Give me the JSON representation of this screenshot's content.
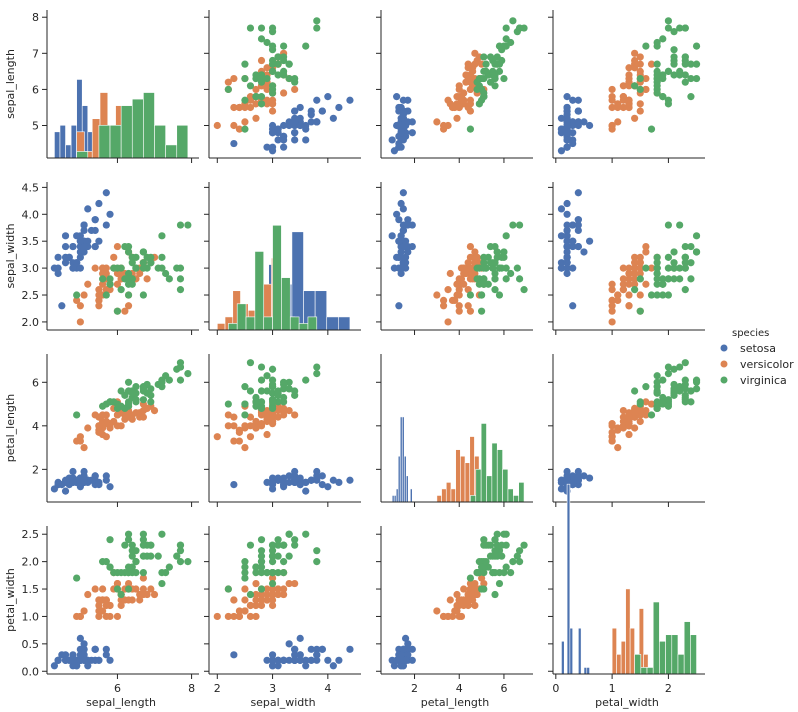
{
  "chart_data": {
    "type": "scatter",
    "variables": [
      "sepal_length",
      "sepal_width",
      "petal_length",
      "petal_width"
    ],
    "ranges": {
      "sepal_length": [
        4.1,
        8.2
      ],
      "sepal_width": [
        1.85,
        4.6
      ],
      "petal_length": [
        0.5,
        7.3
      ],
      "petal_width": [
        -0.05,
        2.65
      ]
    },
    "ticks": {
      "sepal_length": [
        5,
        6,
        7,
        8
      ],
      "sepal_width": [
        2.0,
        2.5,
        3.0,
        3.5,
        4.0,
        4.5
      ],
      "petal_length": [
        2,
        4,
        6
      ],
      "petal_width": [
        0.0,
        0.5,
        1.0,
        1.5,
        2.0,
        2.5
      ]
    },
    "ticks_x": {
      "sepal_length": [
        6,
        8
      ],
      "sepal_width": [
        2,
        3,
        4
      ],
      "petal_length": [
        2,
        4,
        6
      ],
      "petal_width": [
        0,
        1,
        2
      ]
    },
    "ticks_y": {
      "sepal_length": [
        5,
        6,
        7,
        8
      ],
      "sepal_width": [
        2.0,
        2.5,
        3.0,
        3.5,
        4.0,
        4.5
      ],
      "petal_length": [
        2,
        4,
        6
      ],
      "petal_width": [
        0.0,
        0.5,
        1.0,
        1.5,
        2.0,
        2.5
      ]
    },
    "tick_labels_x": {
      "sepal_length": [
        "6",
        "8"
      ],
      "sepal_width": [
        "2",
        "3",
        "4"
      ],
      "petal_length": [
        "2",
        "4",
        "6"
      ],
      "petal_width": [
        "0",
        "1",
        "2"
      ]
    },
    "tick_labels_y": {
      "sepal_length": [
        "5",
        "6",
        "7",
        "8"
      ],
      "sepal_width": [
        "2.0",
        "2.5",
        "3.0",
        "3.5",
        "4.0",
        "4.5"
      ],
      "petal_length": [
        "2",
        "4",
        "6"
      ],
      "petal_width": [
        "0.0",
        "0.5",
        "1.0",
        "1.5",
        "2.0",
        "2.5"
      ]
    },
    "legend": {
      "title": "species",
      "placement": "center-right",
      "entries": [
        {
          "name": "setosa",
          "color": "#4c72b0"
        },
        {
          "name": "versicolor",
          "color": "#dd8452"
        },
        {
          "name": "virginica",
          "color": "#55a868"
        }
      ]
    },
    "histogram_bins": 10,
    "series": [
      {
        "name": "setosa",
        "color": "#4c72b0",
        "rows": [
          [
            5.1,
            3.5,
            1.4,
            0.2
          ],
          [
            4.9,
            3.0,
            1.4,
            0.2
          ],
          [
            4.7,
            3.2,
            1.3,
            0.2
          ],
          [
            4.6,
            3.1,
            1.5,
            0.2
          ],
          [
            5.0,
            3.6,
            1.4,
            0.2
          ],
          [
            5.4,
            3.9,
            1.7,
            0.4
          ],
          [
            4.6,
            3.4,
            1.4,
            0.3
          ],
          [
            5.0,
            3.4,
            1.5,
            0.2
          ],
          [
            4.4,
            2.9,
            1.4,
            0.2
          ],
          [
            4.9,
            3.1,
            1.5,
            0.1
          ],
          [
            5.4,
            3.7,
            1.5,
            0.2
          ],
          [
            4.8,
            3.4,
            1.6,
            0.2
          ],
          [
            4.8,
            3.0,
            1.4,
            0.1
          ],
          [
            4.3,
            3.0,
            1.1,
            0.1
          ],
          [
            5.8,
            4.0,
            1.2,
            0.2
          ],
          [
            5.7,
            4.4,
            1.5,
            0.4
          ],
          [
            5.4,
            3.9,
            1.3,
            0.4
          ],
          [
            5.1,
            3.5,
            1.4,
            0.3
          ],
          [
            5.7,
            3.8,
            1.7,
            0.3
          ],
          [
            5.1,
            3.8,
            1.5,
            0.3
          ],
          [
            5.4,
            3.4,
            1.7,
            0.2
          ],
          [
            5.1,
            3.7,
            1.5,
            0.4
          ],
          [
            4.6,
            3.6,
            1.0,
            0.2
          ],
          [
            5.1,
            3.3,
            1.7,
            0.5
          ],
          [
            4.8,
            3.4,
            1.9,
            0.2
          ],
          [
            5.0,
            3.0,
            1.6,
            0.2
          ],
          [
            5.0,
            3.4,
            1.6,
            0.4
          ],
          [
            5.2,
            3.5,
            1.5,
            0.2
          ],
          [
            5.2,
            3.4,
            1.4,
            0.2
          ],
          [
            4.7,
            3.2,
            1.6,
            0.2
          ],
          [
            4.8,
            3.1,
            1.6,
            0.2
          ],
          [
            5.4,
            3.4,
            1.5,
            0.4
          ],
          [
            5.2,
            4.1,
            1.5,
            0.1
          ],
          [
            5.5,
            4.2,
            1.4,
            0.2
          ],
          [
            4.9,
            3.1,
            1.5,
            0.2
          ],
          [
            5.0,
            3.2,
            1.2,
            0.2
          ],
          [
            5.5,
            3.5,
            1.3,
            0.2
          ],
          [
            4.9,
            3.6,
            1.4,
            0.1
          ],
          [
            4.4,
            3.0,
            1.3,
            0.2
          ],
          [
            5.1,
            3.4,
            1.5,
            0.2
          ],
          [
            5.0,
            3.5,
            1.3,
            0.3
          ],
          [
            4.5,
            2.3,
            1.3,
            0.3
          ],
          [
            4.4,
            3.2,
            1.3,
            0.2
          ],
          [
            5.0,
            3.5,
            1.6,
            0.6
          ],
          [
            5.1,
            3.8,
            1.9,
            0.4
          ],
          [
            4.8,
            3.0,
            1.4,
            0.3
          ],
          [
            5.1,
            3.8,
            1.6,
            0.2
          ],
          [
            4.6,
            3.2,
            1.4,
            0.2
          ],
          [
            5.3,
            3.7,
            1.5,
            0.2
          ],
          [
            5.0,
            3.3,
            1.4,
            0.2
          ]
        ]
      },
      {
        "name": "versicolor",
        "color": "#dd8452",
        "rows": [
          [
            7.0,
            3.2,
            4.7,
            1.4
          ],
          [
            6.4,
            3.2,
            4.5,
            1.5
          ],
          [
            6.9,
            3.1,
            4.9,
            1.5
          ],
          [
            5.5,
            2.3,
            4.0,
            1.3
          ],
          [
            6.5,
            2.8,
            4.6,
            1.5
          ],
          [
            5.7,
            2.8,
            4.5,
            1.3
          ],
          [
            6.3,
            3.3,
            4.7,
            1.6
          ],
          [
            4.9,
            2.4,
            3.3,
            1.0
          ],
          [
            6.6,
            2.9,
            4.6,
            1.3
          ],
          [
            5.2,
            2.7,
            3.9,
            1.4
          ],
          [
            5.0,
            2.0,
            3.5,
            1.0
          ],
          [
            5.9,
            3.0,
            4.2,
            1.5
          ],
          [
            6.0,
            2.2,
            4.0,
            1.0
          ],
          [
            6.1,
            2.9,
            4.7,
            1.4
          ],
          [
            5.6,
            2.9,
            3.6,
            1.3
          ],
          [
            6.7,
            3.1,
            4.4,
            1.4
          ],
          [
            5.6,
            3.0,
            4.5,
            1.5
          ],
          [
            5.8,
            2.7,
            4.1,
            1.0
          ],
          [
            6.2,
            2.2,
            4.5,
            1.5
          ],
          [
            5.6,
            2.5,
            3.9,
            1.1
          ],
          [
            5.9,
            3.2,
            4.8,
            1.8
          ],
          [
            6.1,
            2.8,
            4.0,
            1.3
          ],
          [
            6.3,
            2.5,
            4.9,
            1.5
          ],
          [
            6.1,
            2.8,
            4.7,
            1.2
          ],
          [
            6.4,
            2.9,
            4.3,
            1.3
          ],
          [
            6.6,
            3.0,
            4.4,
            1.4
          ],
          [
            6.8,
            2.8,
            4.8,
            1.4
          ],
          [
            6.7,
            3.0,
            5.0,
            1.7
          ],
          [
            6.0,
            2.9,
            4.5,
            1.5
          ],
          [
            5.7,
            2.6,
            3.5,
            1.0
          ],
          [
            5.5,
            2.4,
            3.8,
            1.1
          ],
          [
            5.5,
            2.4,
            3.7,
            1.0
          ],
          [
            5.8,
            2.7,
            3.9,
            1.2
          ],
          [
            6.0,
            2.7,
            5.1,
            1.6
          ],
          [
            5.4,
            3.0,
            4.5,
            1.5
          ],
          [
            6.0,
            3.4,
            4.5,
            1.6
          ],
          [
            6.7,
            3.1,
            4.7,
            1.5
          ],
          [
            6.3,
            2.3,
            4.4,
            1.3
          ],
          [
            5.6,
            3.0,
            4.1,
            1.3
          ],
          [
            5.5,
            2.5,
            4.0,
            1.3
          ],
          [
            5.5,
            2.6,
            4.4,
            1.2
          ],
          [
            6.1,
            3.0,
            4.6,
            1.4
          ],
          [
            5.8,
            2.6,
            4.0,
            1.2
          ],
          [
            5.0,
            2.3,
            3.3,
            1.0
          ],
          [
            5.6,
            2.7,
            4.2,
            1.3
          ],
          [
            5.7,
            3.0,
            4.2,
            1.2
          ],
          [
            5.7,
            2.9,
            4.2,
            1.3
          ],
          [
            6.2,
            2.9,
            4.3,
            1.3
          ],
          [
            5.1,
            2.5,
            3.0,
            1.1
          ],
          [
            5.7,
            2.8,
            4.1,
            1.3
          ]
        ]
      },
      {
        "name": "virginica",
        "color": "#55a868",
        "rows": [
          [
            6.3,
            3.3,
            6.0,
            2.5
          ],
          [
            5.8,
            2.7,
            5.1,
            1.9
          ],
          [
            7.1,
            3.0,
            5.9,
            2.1
          ],
          [
            6.3,
            2.9,
            5.6,
            1.8
          ],
          [
            6.5,
            3.0,
            5.8,
            2.2
          ],
          [
            7.6,
            3.0,
            6.6,
            2.1
          ],
          [
            4.9,
            2.5,
            4.5,
            1.7
          ],
          [
            7.3,
            2.9,
            6.3,
            1.8
          ],
          [
            6.7,
            2.5,
            5.8,
            1.8
          ],
          [
            7.2,
            3.6,
            6.1,
            2.5
          ],
          [
            6.5,
            3.2,
            5.1,
            2.0
          ],
          [
            6.4,
            2.7,
            5.3,
            1.9
          ],
          [
            6.8,
            3.0,
            5.5,
            2.1
          ],
          [
            5.7,
            2.5,
            5.0,
            2.0
          ],
          [
            5.8,
            2.8,
            5.1,
            2.4
          ],
          [
            6.4,
            3.2,
            5.3,
            2.3
          ],
          [
            6.5,
            3.0,
            5.5,
            1.8
          ],
          [
            7.7,
            3.8,
            6.7,
            2.2
          ],
          [
            7.7,
            2.6,
            6.9,
            2.3
          ],
          [
            6.0,
            2.2,
            5.0,
            1.5
          ],
          [
            6.9,
            3.2,
            5.7,
            2.3
          ],
          [
            5.6,
            2.8,
            4.9,
            2.0
          ],
          [
            7.7,
            2.8,
            6.7,
            2.0
          ],
          [
            6.3,
            2.7,
            4.9,
            1.8
          ],
          [
            6.7,
            3.3,
            5.7,
            2.1
          ],
          [
            7.2,
            3.2,
            6.0,
            1.8
          ],
          [
            6.2,
            2.8,
            4.8,
            1.8
          ],
          [
            6.1,
            3.0,
            4.9,
            1.8
          ],
          [
            6.4,
            2.8,
            5.6,
            2.1
          ],
          [
            7.2,
            3.0,
            5.8,
            1.6
          ],
          [
            7.4,
            2.8,
            6.1,
            1.9
          ],
          [
            7.9,
            3.8,
            6.4,
            2.0
          ],
          [
            6.4,
            2.8,
            5.6,
            2.2
          ],
          [
            6.3,
            2.8,
            5.1,
            1.5
          ],
          [
            6.1,
            2.6,
            5.6,
            1.4
          ],
          [
            7.7,
            3.0,
            6.1,
            2.3
          ],
          [
            6.3,
            3.4,
            5.6,
            2.4
          ],
          [
            6.4,
            3.1,
            5.5,
            1.8
          ],
          [
            6.0,
            3.0,
            4.8,
            1.8
          ],
          [
            6.9,
            3.1,
            5.4,
            2.1
          ],
          [
            6.7,
            3.1,
            5.6,
            2.4
          ],
          [
            6.9,
            3.1,
            5.1,
            2.3
          ],
          [
            5.8,
            2.7,
            5.1,
            1.9
          ],
          [
            6.8,
            3.2,
            5.9,
            2.3
          ],
          [
            6.7,
            3.3,
            5.7,
            2.5
          ],
          [
            6.7,
            3.0,
            5.2,
            2.3
          ],
          [
            6.3,
            2.5,
            5.0,
            1.9
          ],
          [
            6.5,
            3.0,
            5.2,
            2.0
          ],
          [
            6.2,
            3.4,
            5.4,
            2.3
          ],
          [
            5.9,
            3.0,
            5.1,
            1.8
          ]
        ]
      }
    ]
  }
}
